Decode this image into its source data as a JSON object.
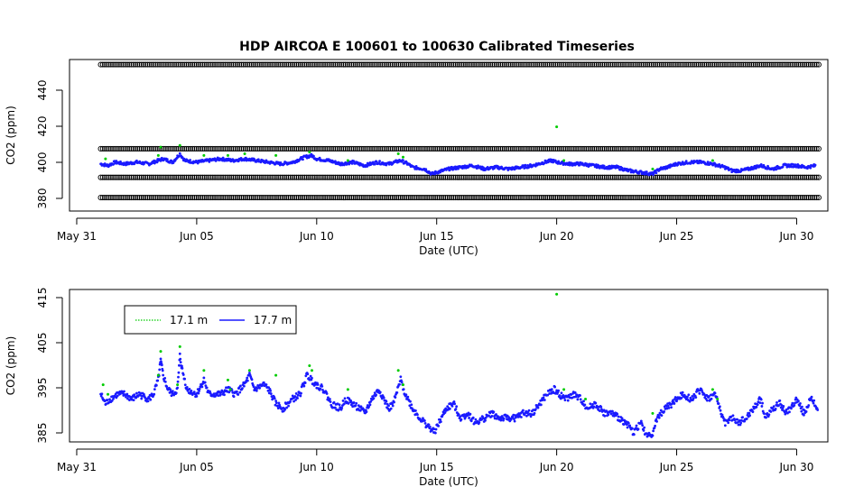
{
  "title": "HDP   AIRCOA  E    100601  to  100630   Calibrated Timeseries",
  "colors": {
    "series_17_1": "#00cc00",
    "series_17_7": "#1a1aff",
    "calibration": "#000000"
  },
  "chart_data": [
    {
      "type": "scatter",
      "xlabel": "Date (UTC)",
      "ylabel": "CO2 (ppm)",
      "xlim": [
        -0.3,
        31.3
      ],
      "ylim": [
        365,
        455
      ],
      "x_ticks": [
        {
          "label": "May 31",
          "day": 0
        },
        {
          "label": "Jun 05",
          "day": 5
        },
        {
          "label": "Jun 10",
          "day": 10
        },
        {
          "label": "Jun 15",
          "day": 15
        },
        {
          "label": "Jun 20",
          "day": 20
        },
        {
          "label": "Jun 25",
          "day": 25
        },
        {
          "label": "Jun 30",
          "day": 30
        }
      ],
      "y_ticks": [
        "380",
        "400",
        "420",
        "440"
      ],
      "calibration_levels": [
        373,
        385,
        402,
        452
      ],
      "series": [
        {
          "name": "17.7 m",
          "points": [
            [
              1.0,
              393
            ],
            [
              1.3,
              392
            ],
            [
              1.6,
              394
            ],
            [
              2.0,
              393
            ],
            [
              2.5,
              394
            ],
            [
              3.0,
              393
            ],
            [
              3.4,
              395
            ],
            [
              3.6,
              396
            ],
            [
              4.0,
              394
            ],
            [
              4.3,
              399
            ],
            [
              4.5,
              395
            ],
            [
              5.0,
              394
            ],
            [
              5.5,
              395
            ],
            [
              6.0,
              396
            ],
            [
              6.5,
              395
            ],
            [
              7.0,
              396
            ],
            [
              7.5,
              395
            ],
            [
              8.0,
              394
            ],
            [
              8.5,
              393
            ],
            [
              9.0,
              394
            ],
            [
              9.5,
              397
            ],
            [
              9.8,
              398
            ],
            [
              10.0,
              396
            ],
            [
              10.5,
              395
            ],
            [
              11.0,
              393
            ],
            [
              11.5,
              394
            ],
            [
              12.0,
              392
            ],
            [
              12.5,
              394
            ],
            [
              13.0,
              393
            ],
            [
              13.5,
              395
            ],
            [
              13.8,
              393
            ],
            [
              14.0,
              391
            ],
            [
              14.5,
              390
            ],
            [
              14.8,
              387
            ],
            [
              15.0,
              388
            ],
            [
              15.5,
              390
            ],
            [
              16.0,
              391
            ],
            [
              16.5,
              392
            ],
            [
              17.0,
              390
            ],
            [
              17.5,
              391
            ],
            [
              18.0,
              390
            ],
            [
              18.5,
              391
            ],
            [
              19.0,
              392
            ],
            [
              19.5,
              394
            ],
            [
              19.8,
              395
            ],
            [
              20.0,
              394
            ],
            [
              20.5,
              393
            ],
            [
              21.0,
              393
            ],
            [
              21.5,
              392
            ],
            [
              22.0,
              391
            ],
            [
              22.5,
              391
            ],
            [
              23.0,
              389
            ],
            [
              23.5,
              388
            ],
            [
              24.0,
              387
            ],
            [
              24.3,
              390
            ],
            [
              24.6,
              391
            ],
            [
              25.0,
              393
            ],
            [
              25.5,
              394
            ],
            [
              26.0,
              394
            ],
            [
              26.5,
              393
            ],
            [
              27.0,
              391
            ],
            [
              27.3,
              389
            ],
            [
              27.7,
              389
            ],
            [
              28.0,
              390
            ],
            [
              28.5,
              392
            ],
            [
              29.0,
              390
            ],
            [
              29.5,
              392
            ],
            [
              30.0,
              392
            ],
            [
              30.4,
              391
            ],
            [
              30.8,
              392
            ]
          ]
        },
        {
          "name": "17.1 m",
          "points": [
            [
              1.2,
              396
            ],
            [
              3.5,
              403
            ],
            [
              3.4,
              398
            ],
            [
              4.3,
              404
            ],
            [
              5.3,
              398
            ],
            [
              6.3,
              398
            ],
            [
              7.0,
              399
            ],
            [
              8.3,
              398
            ],
            [
              9.7,
              400
            ],
            [
              11.3,
              395
            ],
            [
              13.4,
              399
            ],
            [
              13.6,
              397
            ],
            [
              20.0,
              415
            ],
            [
              20.3,
              395
            ],
            [
              26.5,
              395
            ],
            [
              24.0,
              390
            ]
          ]
        }
      ]
    },
    {
      "type": "scatter",
      "xlabel": "Date (UTC)",
      "ylabel": "CO2 (ppm)",
      "xlim": [
        -0.3,
        31.3
      ],
      "ylim": [
        384,
        416
      ],
      "x_ticks": [
        {
          "label": "May 31",
          "day": 0
        },
        {
          "label": "Jun 05",
          "day": 5
        },
        {
          "label": "Jun 10",
          "day": 10
        },
        {
          "label": "Jun 15",
          "day": 15
        },
        {
          "label": "Jun 20",
          "day": 20
        },
        {
          "label": "Jun 25",
          "day": 25
        },
        {
          "label": "Jun 30",
          "day": 30
        }
      ],
      "y_ticks": [
        "385",
        "395",
        "405",
        "415"
      ],
      "legend_entries": [
        "17.1 m",
        "17.7 m"
      ],
      "legend_position": "top-left",
      "series": [
        {
          "name": "17.7 m",
          "points": [
            [
              1.0,
              394
            ],
            [
              1.2,
              392
            ],
            [
              1.4,
              393
            ],
            [
              1.7,
              394
            ],
            [
              2.0,
              394
            ],
            [
              2.3,
              393
            ],
            [
              2.6,
              394
            ],
            [
              3.0,
              393
            ],
            [
              3.2,
              394
            ],
            [
              3.4,
              397
            ],
            [
              3.5,
              401
            ],
            [
              3.6,
              398
            ],
            [
              3.8,
              395
            ],
            [
              4.0,
              394
            ],
            [
              4.2,
              395
            ],
            [
              4.3,
              402
            ],
            [
              4.4,
              399
            ],
            [
              4.6,
              395
            ],
            [
              5.0,
              394
            ],
            [
              5.3,
              397
            ],
            [
              5.5,
              394
            ],
            [
              6.0,
              394
            ],
            [
              6.3,
              395
            ],
            [
              6.6,
              394
            ],
            [
              7.0,
              396
            ],
            [
              7.2,
              398
            ],
            [
              7.4,
              395
            ],
            [
              7.8,
              396
            ],
            [
              8.0,
              395
            ],
            [
              8.3,
              392
            ],
            [
              8.6,
              391
            ],
            [
              9.0,
              393
            ],
            [
              9.3,
              394
            ],
            [
              9.6,
              398
            ],
            [
              9.8,
              397
            ],
            [
              10.0,
              396
            ],
            [
              10.3,
              395
            ],
            [
              10.6,
              392
            ],
            [
              11.0,
              391
            ],
            [
              11.2,
              393
            ],
            [
              11.5,
              392
            ],
            [
              11.8,
              391
            ],
            [
              12.0,
              390
            ],
            [
              12.3,
              393
            ],
            [
              12.6,
              395
            ],
            [
              13.0,
              391
            ],
            [
              13.2,
              392
            ],
            [
              13.5,
              397
            ],
            [
              13.7,
              394
            ],
            [
              14.0,
              391
            ],
            [
              14.3,
              389
            ],
            [
              14.7,
              387
            ],
            [
              14.9,
              386
            ],
            [
              15.1,
              388
            ],
            [
              15.4,
              391
            ],
            [
              15.7,
              392
            ],
            [
              16.0,
              389
            ],
            [
              16.3,
              390
            ],
            [
              16.6,
              388
            ],
            [
              17.0,
              389
            ],
            [
              17.3,
              390
            ],
            [
              17.6,
              389
            ],
            [
              18.0,
              389
            ],
            [
              18.3,
              389
            ],
            [
              18.6,
              390
            ],
            [
              19.0,
              390
            ],
            [
              19.3,
              392
            ],
            [
              19.6,
              394
            ],
            [
              19.9,
              395
            ],
            [
              20.1,
              394
            ],
            [
              20.4,
              393
            ],
            [
              20.7,
              394
            ],
            [
              21.0,
              393
            ],
            [
              21.3,
              391
            ],
            [
              21.6,
              392
            ],
            [
              22.0,
              390
            ],
            [
              22.3,
              390
            ],
            [
              22.6,
              389
            ],
            [
              22.9,
              388
            ],
            [
              23.2,
              386
            ],
            [
              23.5,
              388
            ],
            [
              23.8,
              385
            ],
            [
              24.0,
              386
            ],
            [
              24.2,
              389
            ],
            [
              24.5,
              391
            ],
            [
              24.8,
              392
            ],
            [
              25.0,
              393
            ],
            [
              25.3,
              394
            ],
            [
              25.6,
              393
            ],
            [
              26.0,
              395
            ],
            [
              26.3,
              393
            ],
            [
              26.6,
              394
            ],
            [
              26.8,
              391
            ],
            [
              27.0,
              388
            ],
            [
              27.3,
              389
            ],
            [
              27.6,
              388
            ],
            [
              27.9,
              389
            ],
            [
              28.2,
              391
            ],
            [
              28.5,
              393
            ],
            [
              28.7,
              389
            ],
            [
              29.0,
              391
            ],
            [
              29.3,
              392
            ],
            [
              29.6,
              390
            ],
            [
              30.0,
              393
            ],
            [
              30.3,
              390
            ],
            [
              30.6,
              393
            ],
            [
              30.9,
              391
            ]
          ]
        },
        {
          "name": "17.1 m",
          "points": [
            [
              1.1,
              396
            ],
            [
              1.3,
              394
            ],
            [
              3.4,
              398
            ],
            [
              3.5,
              403
            ],
            [
              4.3,
              404
            ],
            [
              4.2,
              396
            ],
            [
              5.3,
              399
            ],
            [
              6.3,
              397
            ],
            [
              6.4,
              395
            ],
            [
              7.2,
              399
            ],
            [
              8.3,
              398
            ],
            [
              9.7,
              400
            ],
            [
              9.8,
              399
            ],
            [
              11.3,
              395
            ],
            [
              13.4,
              399
            ],
            [
              13.6,
              396
            ],
            [
              20.0,
              415
            ],
            [
              20.3,
              395
            ],
            [
              21.2,
              393
            ],
            [
              24.0,
              390
            ],
            [
              26.5,
              395
            ],
            [
              26.7,
              393
            ]
          ]
        }
      ]
    }
  ]
}
